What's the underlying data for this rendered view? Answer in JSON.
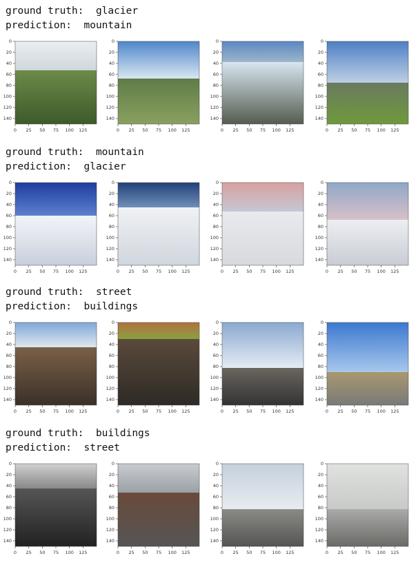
{
  "panels": [
    {
      "ground_truth": "ground truth:  glacier",
      "prediction": "prediction:  mountain"
    },
    {
      "ground_truth": "ground truth:  mountain",
      "prediction": "prediction:  glacier"
    },
    {
      "ground_truth": "ground truth:  street",
      "prediction": "prediction:  buildings"
    },
    {
      "ground_truth": "ground truth:  buildings",
      "prediction": "prediction:  street"
    }
  ],
  "axes": {
    "xlim": [
      0,
      150
    ],
    "ylim": [
      0,
      150
    ],
    "xticks": [
      0,
      25,
      50,
      75,
      100,
      125
    ],
    "yticks": [
      0,
      20,
      40,
      60,
      80,
      100,
      120,
      140
    ]
  }
}
